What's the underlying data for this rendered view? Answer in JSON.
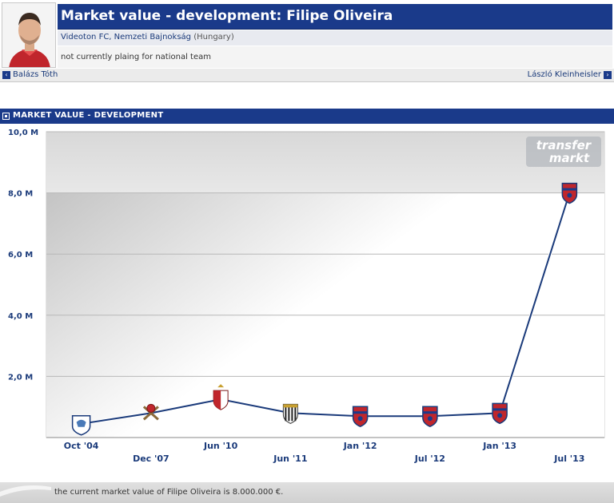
{
  "header": {
    "title": "Market value - development: Filipe Oliveira",
    "club": "Videoton FC, Nemzeti Bajnokság",
    "country": "(Hungary)",
    "national_team": "not currently plaing for national team",
    "prev_player": "Balázs Tóth",
    "next_player": "László Kleinheisler"
  },
  "section": {
    "title": "MARKET VALUE - DEVELOPMENT"
  },
  "watermark": {
    "line1": "transfer",
    "line2": "markt"
  },
  "chart_data": {
    "type": "line",
    "categories": [
      "Oct '04",
      "Dec '07",
      "Jun '10",
      "Jun '11",
      "Jan '12",
      "Jul '12",
      "Jan '13",
      "Jul '13"
    ],
    "values": [
      0.45,
      0.8,
      1.25,
      0.8,
      0.7,
      0.7,
      0.8,
      8.0
    ],
    "ylim": [
      0,
      10
    ],
    "ytick_labels": [
      "10,0 M",
      "8,0 M",
      "6,0 M",
      "4,0 M",
      "2,0 M"
    ],
    "ytick_values": [
      10,
      8,
      6,
      4,
      2
    ],
    "title": "",
    "xlabel": "",
    "ylabel": "",
    "grid": true,
    "club_badges": [
      "crest-white",
      "crest-crossed",
      "crest-redwhite",
      "crest-stripes",
      "crest-videoton",
      "crest-videoton",
      "crest-videoton",
      "crest-videoton"
    ],
    "line_color": "#1a3a7a"
  },
  "footer": {
    "text": "the current market value of Filipe Oliveira is 8.000.000 €."
  }
}
